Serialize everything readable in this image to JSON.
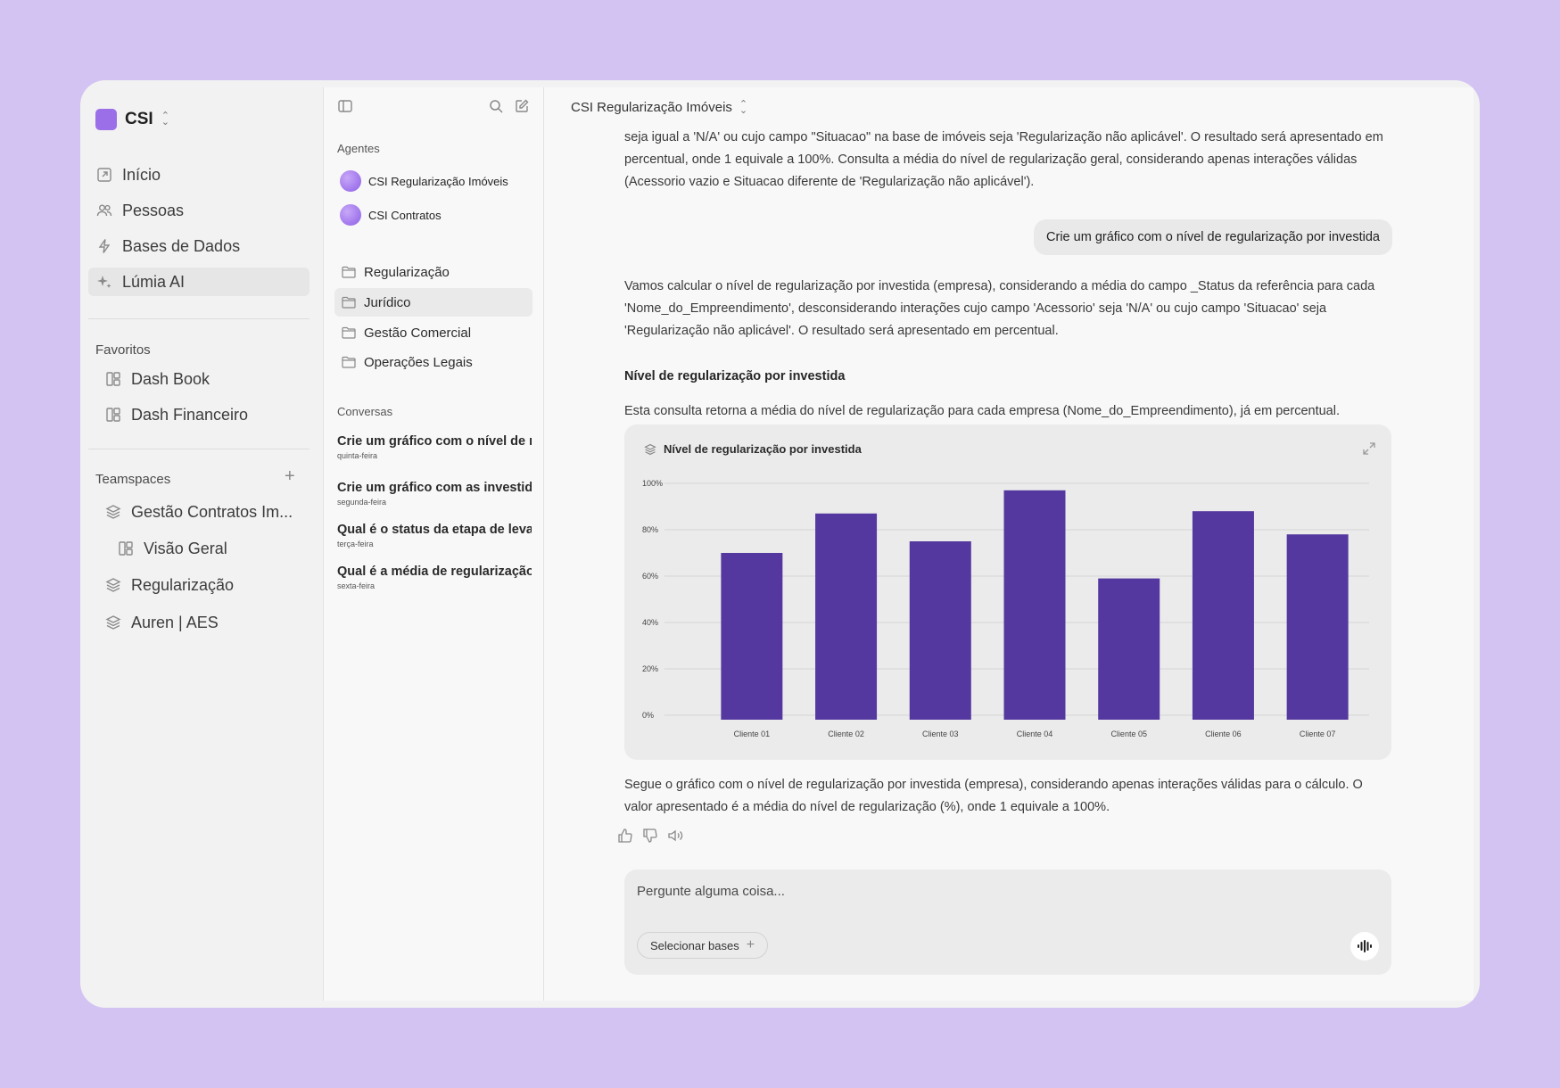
{
  "brand": {
    "name": "CSI",
    "color": "#9b6fe8"
  },
  "nav": {
    "items": [
      {
        "label": "Início",
        "icon": "external-link-icon"
      },
      {
        "label": "Pessoas",
        "icon": "people-icon"
      },
      {
        "label": "Bases de Dados",
        "icon": "lightning-icon"
      },
      {
        "label": "Lúmia AI",
        "icon": "sparkle-icon"
      }
    ],
    "favorites_label": "Favoritos",
    "favorites": [
      {
        "label": "Dash Book",
        "icon": "dashboard-icon"
      },
      {
        "label": "Dash Financeiro",
        "icon": "dashboard-icon"
      }
    ],
    "teamspaces_label": "Teamspaces",
    "teamspaces": [
      {
        "label": "Gestão Contratos Im...",
        "icon": "layers-icon"
      },
      {
        "label": "Visão Geral",
        "icon": "dashboard-icon"
      },
      {
        "label": "Regularização",
        "icon": "layers-icon"
      },
      {
        "label": "Auren | AES",
        "icon": "layers-icon"
      }
    ]
  },
  "middle": {
    "agents_label": "Agentes",
    "agents": [
      {
        "name": "CSI Regularização Imóveis"
      },
      {
        "name": "CSI Contratos"
      }
    ],
    "folders": [
      {
        "label": "Regularização"
      },
      {
        "label": "Jurídico"
      },
      {
        "label": "Gestão Comercial"
      },
      {
        "label": "Operações Legais"
      }
    ],
    "conversations_label": "Conversas",
    "conversations": [
      {
        "title": "Crie um gráfico com o nível de regularização",
        "date": "quinta-feira"
      },
      {
        "title": "Crie um gráfico com as investidas",
        "date": "segunda-feira"
      },
      {
        "title": "Qual é o status da etapa de levantamento",
        "date": "terça-feira"
      },
      {
        "title": "Qual é a média de regularização",
        "date": "sexta-feira"
      }
    ]
  },
  "main": {
    "title": "CSI Regularização Imóveis",
    "top_text_1": "seja igual a 'N/A' ou cujo campo \"Situacao\" na base de imóveis seja 'Regularização não aplicável'. O resultado será apresentado em",
    "top_text_2": "percentual, onde 1 equivale a 100%. Consulta a média do nível de regularização geral, considerando apenas interações válidas",
    "top_text_3": "(Acessorio vazio e Situacao diferente de 'Regularização não aplicável').",
    "user_message": "Crie um gráfico com o nível de regularização por investida",
    "reply_text": "Vamos calcular o nível de regularização por investida (empresa), considerando a média do campo _Status da referência para cada 'Nome_do_Empreendimento', desconsiderando interações cujo campo 'Acessorio' seja 'N/A' ou cujo campo 'Situacao' seja 'Regularização não aplicável'. O resultado será apresentado em percentual.",
    "section_heading": "Nível de regularização por investida",
    "query_text": "Esta consulta retorna a média do nível de regularização para cada empresa (Nome_do_Empreendimento), já em percentual.",
    "after_chart_text": "Segue o gráfico com o nível de regularização por investida (empresa), considerando apenas interações válidas para o cálculo. O valor apresentado é a média do nível de regularização (%), onde 1 equivale a 100%.",
    "composer_placeholder": "Pergunte alguma coisa...",
    "select_bases_label": "Selecionar bases"
  },
  "chart_data": {
    "type": "bar",
    "title": "Nível de regularização por investida",
    "categories": [
      "Cliente 01",
      "Cliente 02",
      "Cliente 03",
      "Cliente 04",
      "Cliente 05",
      "Cliente 06",
      "Cliente 07"
    ],
    "values": [
      70,
      87,
      75,
      97,
      59,
      88,
      78
    ],
    "yticks": [
      "0%",
      "20%",
      "40%",
      "60%",
      "80%",
      "100%"
    ],
    "ylim": [
      0,
      100
    ],
    "bar_color": "#5438a0",
    "grid": true
  }
}
